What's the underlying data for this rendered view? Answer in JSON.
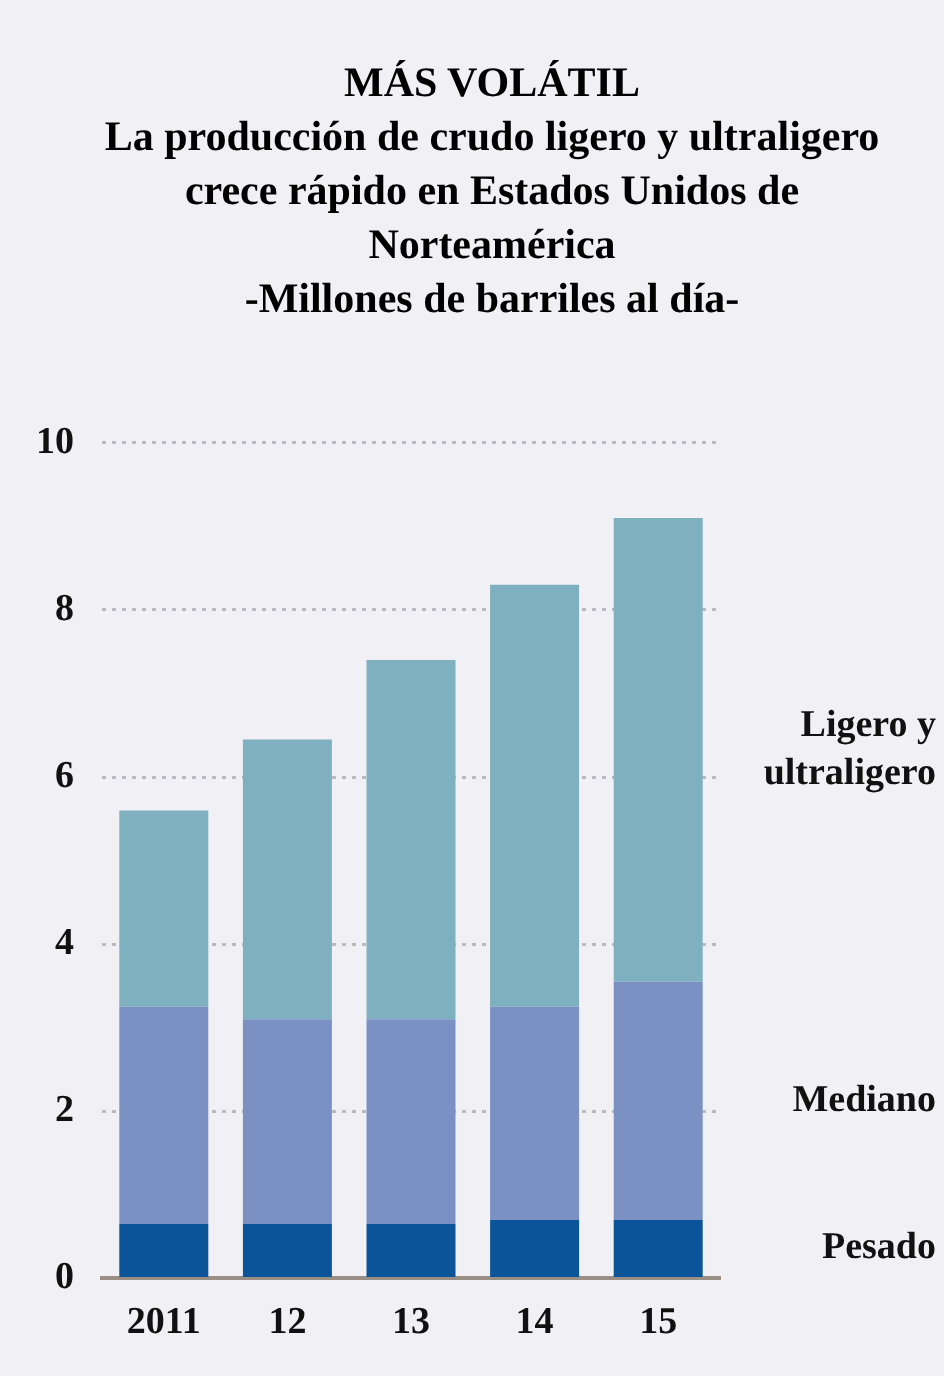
{
  "chart_data": {
    "type": "bar",
    "title": "MÁS VOLÁTIL",
    "subtitle": "La producción de crudo ligero y ultraligero crece rápido en Estados Unidos de Norteamérica",
    "ylabel": "-Millones de barriles al día-",
    "categories": [
      "2011",
      "12",
      "13",
      "14",
      "15"
    ],
    "series": [
      {
        "name": "Pesado",
        "color": "#0b5499",
        "values": [
          0.65,
          0.65,
          0.65,
          0.7,
          0.7
        ]
      },
      {
        "name": "Mediano",
        "color": "#7b91c4",
        "values": [
          2.6,
          2.45,
          2.45,
          2.55,
          2.85
        ]
      },
      {
        "name": "Ligero y ultraligero",
        "color": "#7fb0c0",
        "values": [
          2.35,
          3.35,
          4.3,
          5.05,
          5.55
        ]
      }
    ],
    "stacked": true,
    "ylim": [
      0,
      10
    ],
    "yticks": [
      0,
      2,
      4,
      6,
      8,
      10
    ],
    "grid": "y",
    "legend": false
  }
}
